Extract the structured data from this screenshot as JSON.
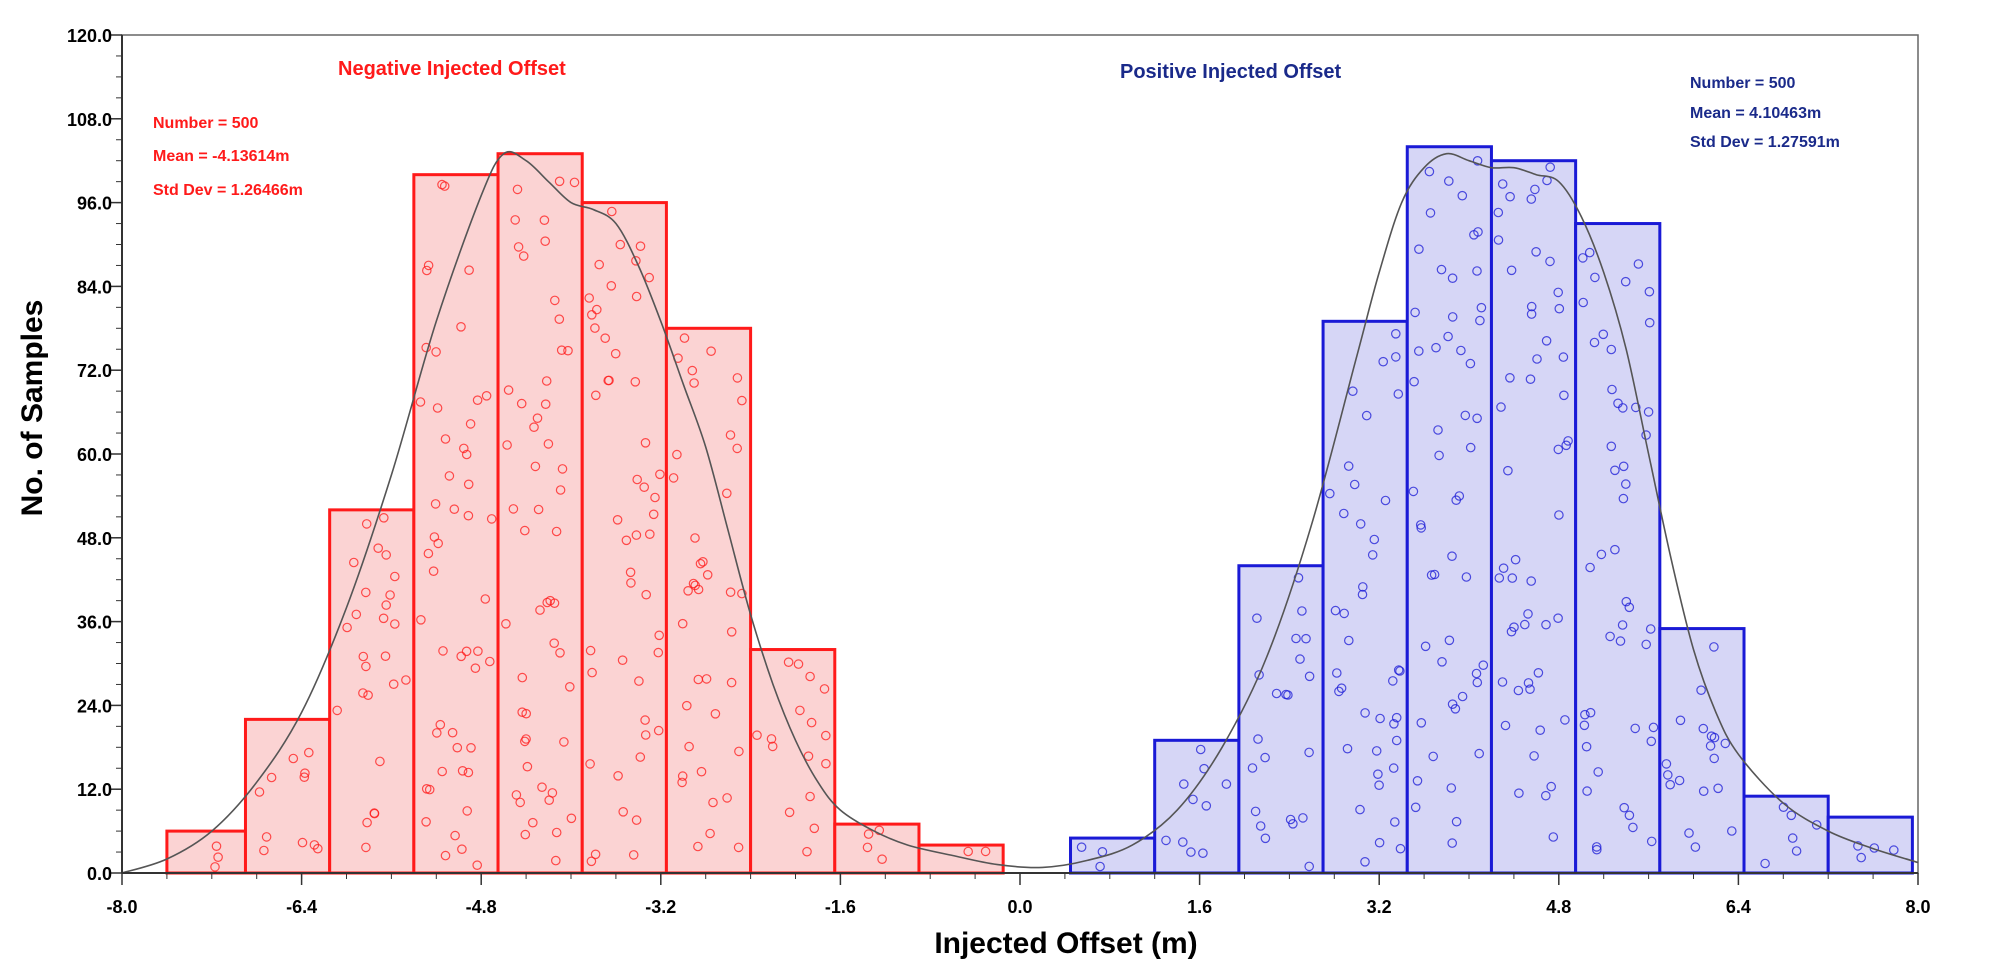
{
  "chart_data": {
    "type": "bar",
    "xlabel": "Injected Offset  (m)",
    "ylabel": "No. of Samples",
    "xlim": [
      -8.0,
      8.0
    ],
    "ylim": [
      0,
      120
    ],
    "xticks": [
      "-8.0",
      "-6.4",
      "-4.8",
      "-3.2",
      "-1.6",
      "0.0",
      "1.6",
      "3.2",
      "4.8",
      "6.4",
      "8.0"
    ],
    "yticks": [
      "0.0",
      "12.0",
      "24.0",
      "36.0",
      "48.0",
      "60.0",
      "72.0",
      "84.0",
      "96.0",
      "108.0",
      "120.0"
    ],
    "grid": false,
    "series": [
      {
        "name": "Negative Injected Offset",
        "color": "#ff1a1a",
        "fill": "#fbd3d3",
        "stats": {
          "number": "Number = 500",
          "mean": "Mean = -4.13614m",
          "std": "Std Dev = 1.26466m"
        },
        "bins": [
          {
            "x0": -7.6,
            "x1": -6.9,
            "count": 6
          },
          {
            "x0": -6.9,
            "x1": -6.15,
            "count": 22
          },
          {
            "x0": -6.15,
            "x1": -5.4,
            "count": 52
          },
          {
            "x0": -5.4,
            "x1": -4.65,
            "count": 100
          },
          {
            "x0": -4.65,
            "x1": -3.9,
            "count": 103
          },
          {
            "x0": -3.9,
            "x1": -3.15,
            "count": 96
          },
          {
            "x0": -3.15,
            "x1": -2.4,
            "count": 78
          },
          {
            "x0": -2.4,
            "x1": -1.65,
            "count": 32
          },
          {
            "x0": -1.65,
            "x1": -0.9,
            "count": 7
          },
          {
            "x0": -0.9,
            "x1": -0.15,
            "count": 4
          }
        ]
      },
      {
        "name": "Positive Injected Offset",
        "color": "#1a1ad6",
        "fill": "#d6d6f6",
        "stats": {
          "number": "Number = 500",
          "mean": "Mean = 4.10463m",
          "std": "Std Dev = 1.27591m"
        },
        "bins": [
          {
            "x0": 0.45,
            "x1": 1.2,
            "count": 5
          },
          {
            "x0": 1.2,
            "x1": 1.95,
            "count": 19
          },
          {
            "x0": 1.95,
            "x1": 2.7,
            "count": 44
          },
          {
            "x0": 2.7,
            "x1": 3.45,
            "count": 79
          },
          {
            "x0": 3.45,
            "x1": 4.2,
            "count": 104
          },
          {
            "x0": 4.2,
            "x1": 4.95,
            "count": 102
          },
          {
            "x0": 4.95,
            "x1": 5.7,
            "count": 93
          },
          {
            "x0": 5.7,
            "x1": 6.45,
            "count": 35
          },
          {
            "x0": 6.45,
            "x1": 7.2,
            "count": 11
          },
          {
            "x0": 7.2,
            "x1": 7.95,
            "count": 8
          }
        ]
      }
    ],
    "density_curve": {
      "color": "#555555",
      "points": [
        [
          -8.0,
          0
        ],
        [
          -7.6,
          2
        ],
        [
          -7.2,
          6
        ],
        [
          -6.8,
          13
        ],
        [
          -6.4,
          23
        ],
        [
          -6.0,
          38
        ],
        [
          -5.6,
          57
        ],
        [
          -5.2,
          79
        ],
        [
          -4.8,
          97
        ],
        [
          -4.6,
          103
        ],
        [
          -4.4,
          102
        ],
        [
          -4.2,
          99
        ],
        [
          -4.0,
          96
        ],
        [
          -3.8,
          95
        ],
        [
          -3.6,
          93
        ],
        [
          -3.4,
          87
        ],
        [
          -3.2,
          79
        ],
        [
          -3.0,
          70
        ],
        [
          -2.8,
          61
        ],
        [
          -2.6,
          49
        ],
        [
          -2.4,
          37
        ],
        [
          -2.2,
          27
        ],
        [
          -2.0,
          19
        ],
        [
          -1.8,
          13
        ],
        [
          -1.6,
          9
        ],
        [
          -1.3,
          6
        ],
        [
          -1.0,
          4
        ],
        [
          -0.6,
          2.5
        ],
        [
          -0.2,
          1.2
        ],
        [
          0.2,
          0.8
        ],
        [
          0.6,
          1.8
        ],
        [
          1.0,
          4
        ],
        [
          1.4,
          9
        ],
        [
          1.8,
          18
        ],
        [
          2.2,
          31
        ],
        [
          2.6,
          50
        ],
        [
          3.0,
          74
        ],
        [
          3.2,
          86
        ],
        [
          3.4,
          96
        ],
        [
          3.6,
          101
        ],
        [
          3.8,
          103
        ],
        [
          4.0,
          102
        ],
        [
          4.2,
          101
        ],
        [
          4.4,
          101
        ],
        [
          4.6,
          100
        ],
        [
          4.8,
          99
        ],
        [
          5.0,
          94
        ],
        [
          5.2,
          86
        ],
        [
          5.4,
          75
        ],
        [
          5.6,
          60
        ],
        [
          5.8,
          45
        ],
        [
          6.0,
          32
        ],
        [
          6.2,
          23
        ],
        [
          6.4,
          17
        ],
        [
          6.8,
          10
        ],
        [
          7.2,
          6
        ],
        [
          7.6,
          3.5
        ],
        [
          8.0,
          1.5
        ]
      ]
    }
  }
}
